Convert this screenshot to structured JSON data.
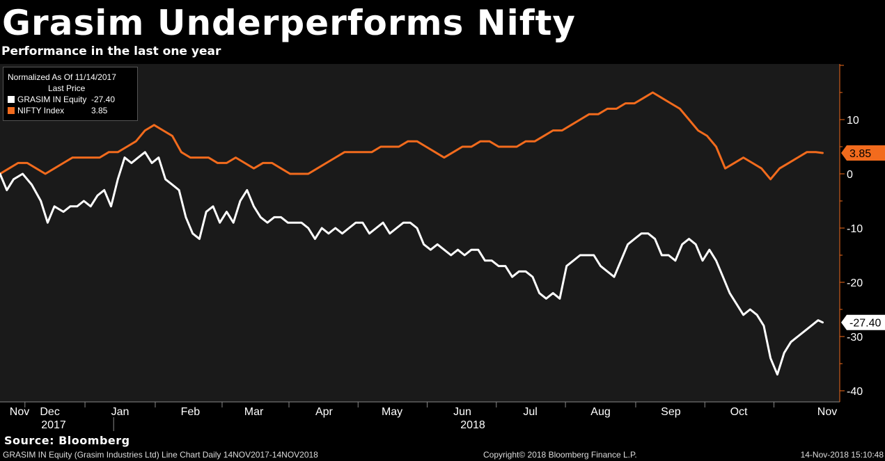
{
  "header": {
    "title": "Grasim Underperforms Nifty",
    "subtitle": "Performance in the last one year"
  },
  "legend": {
    "line1": "Normalized As Of 11/14/2017",
    "line2": "Last Price",
    "entries": [
      {
        "name": "GRASIM IN Equity",
        "value": "-27.40",
        "color": "#ffffff"
      },
      {
        "name": "NIFTY Index",
        "value": "3.85",
        "color": "#f26b1d"
      }
    ]
  },
  "footer": {
    "source": "Source: Bloomberg",
    "left": "GRASIM IN Equity (Grasim Industries Ltd) Line Chart  Daily 14NOV2017-14NOV2018",
    "center": "Copyright© 2018 Bloomberg Finance L.P.",
    "right": "14-Nov-2018 15:10:48"
  },
  "colors": {
    "background": "#000000",
    "plot_background": "#1a1a1a",
    "grasim": "#ffffff",
    "nifty": "#f26b1d",
    "axis": "#f26b1d"
  },
  "chart_data": {
    "type": "line",
    "title": "Grasim Underperforms Nifty",
    "subtitle": "Performance in the last one year",
    "xlabel": "",
    "ylabel": "",
    "ylim": [
      -42,
      20
    ],
    "yticks": [
      10,
      0,
      -10,
      -20,
      -30,
      -40
    ],
    "x_range_days": [
      0,
      365
    ],
    "month_labels": [
      {
        "label": "Nov",
        "day": 0
      },
      {
        "label": "Dec",
        "day": 22
      },
      {
        "label": "Jan",
        "day": 53
      },
      {
        "label": "Feb",
        "day": 84
      },
      {
        "label": "Mar",
        "day": 112
      },
      {
        "label": "Apr",
        "day": 143
      },
      {
        "label": "May",
        "day": 173
      },
      {
        "label": "Jun",
        "day": 204
      },
      {
        "label": "Jul",
        "day": 234
      },
      {
        "label": "Aug",
        "day": 265
      },
      {
        "label": "Sep",
        "day": 296
      },
      {
        "label": "Oct",
        "day": 326
      },
      {
        "label": "Nov",
        "day": 357
      }
    ],
    "year_labels": [
      {
        "label": "2017",
        "day": 18
      },
      {
        "label": "2018",
        "day": 194
      }
    ],
    "year_divider_day": 44,
    "grid": false,
    "legend_position": "top-left",
    "series": [
      {
        "name": "GRASIM IN Equity",
        "last": -27.4,
        "last_label": "-27.40",
        "color": "#ffffff",
        "points": [
          [
            0,
            0
          ],
          [
            3,
            -3
          ],
          [
            6,
            -1
          ],
          [
            10,
            0
          ],
          [
            14,
            -2
          ],
          [
            18,
            -5
          ],
          [
            21,
            -9
          ],
          [
            24,
            -6
          ],
          [
            28,
            -7
          ],
          [
            31,
            -6
          ],
          [
            34,
            -6
          ],
          [
            37,
            -5
          ],
          [
            40,
            -6
          ],
          [
            43,
            -4
          ],
          [
            46,
            -3
          ],
          [
            49,
            -6
          ],
          [
            52,
            -1
          ],
          [
            55,
            3
          ],
          [
            58,
            2
          ],
          [
            61,
            3
          ],
          [
            64,
            4
          ],
          [
            67,
            2
          ],
          [
            70,
            3
          ],
          [
            73,
            -1
          ],
          [
            76,
            -2
          ],
          [
            79,
            -3
          ],
          [
            82,
            -8
          ],
          [
            85,
            -11
          ],
          [
            88,
            -12
          ],
          [
            91,
            -7
          ],
          [
            94,
            -6
          ],
          [
            97,
            -9
          ],
          [
            100,
            -7
          ],
          [
            103,
            -9
          ],
          [
            106,
            -5
          ],
          [
            109,
            -3
          ],
          [
            112,
            -6
          ],
          [
            115,
            -8
          ],
          [
            118,
            -9
          ],
          [
            121,
            -8
          ],
          [
            124,
            -8
          ],
          [
            127,
            -9
          ],
          [
            130,
            -9
          ],
          [
            133,
            -9
          ],
          [
            136,
            -10
          ],
          [
            139,
            -12
          ],
          [
            142,
            -10
          ],
          [
            145,
            -11
          ],
          [
            148,
            -10
          ],
          [
            151,
            -11
          ],
          [
            154,
            -10
          ],
          [
            157,
            -9
          ],
          [
            160,
            -9
          ],
          [
            163,
            -11
          ],
          [
            166,
            -10
          ],
          [
            169,
            -9
          ],
          [
            172,
            -11
          ],
          [
            175,
            -10
          ],
          [
            178,
            -9
          ],
          [
            181,
            -9
          ],
          [
            184,
            -10
          ],
          [
            187,
            -13
          ],
          [
            190,
            -14
          ],
          [
            193,
            -13
          ],
          [
            196,
            -14
          ],
          [
            199,
            -15
          ],
          [
            202,
            -14
          ],
          [
            205,
            -15
          ],
          [
            208,
            -14
          ],
          [
            211,
            -14
          ],
          [
            214,
            -16
          ],
          [
            217,
            -16
          ],
          [
            220,
            -17
          ],
          [
            223,
            -17
          ],
          [
            226,
            -19
          ],
          [
            229,
            -18
          ],
          [
            232,
            -18
          ],
          [
            235,
            -19
          ],
          [
            238,
            -22
          ],
          [
            241,
            -23
          ],
          [
            244,
            -22
          ],
          [
            247,
            -23
          ],
          [
            250,
            -17
          ],
          [
            253,
            -16
          ],
          [
            256,
            -15
          ],
          [
            259,
            -15
          ],
          [
            262,
            -15
          ],
          [
            265,
            -17
          ],
          [
            268,
            -18
          ],
          [
            271,
            -19
          ],
          [
            274,
            -16
          ],
          [
            277,
            -13
          ],
          [
            280,
            -12
          ],
          [
            283,
            -11
          ],
          [
            286,
            -11
          ],
          [
            289,
            -12
          ],
          [
            292,
            -15
          ],
          [
            295,
            -15
          ],
          [
            298,
            -16
          ],
          [
            301,
            -13
          ],
          [
            304,
            -12
          ],
          [
            307,
            -13
          ],
          [
            310,
            -16
          ],
          [
            313,
            -14
          ],
          [
            316,
            -16
          ],
          [
            319,
            -19
          ],
          [
            322,
            -22
          ],
          [
            325,
            -24
          ],
          [
            328,
            -26
          ],
          [
            331,
            -25
          ],
          [
            334,
            -26
          ],
          [
            337,
            -28
          ],
          [
            340,
            -34
          ],
          [
            343,
            -37
          ],
          [
            346,
            -33
          ],
          [
            349,
            -31
          ],
          [
            352,
            -30
          ],
          [
            355,
            -29
          ],
          [
            358,
            -28
          ],
          [
            361,
            -27
          ],
          [
            363,
            -27.4
          ]
        ]
      },
      {
        "name": "NIFTY Index",
        "last": 3.85,
        "last_label": "3.85",
        "color": "#f26b1d",
        "points": [
          [
            0,
            0
          ],
          [
            4,
            1
          ],
          [
            8,
            2
          ],
          [
            12,
            2
          ],
          [
            16,
            1
          ],
          [
            20,
            0
          ],
          [
            24,
            1
          ],
          [
            28,
            2
          ],
          [
            32,
            3
          ],
          [
            36,
            3
          ],
          [
            40,
            3
          ],
          [
            44,
            3
          ],
          [
            48,
            4
          ],
          [
            52,
            4
          ],
          [
            56,
            5
          ],
          [
            60,
            6
          ],
          [
            64,
            8
          ],
          [
            68,
            9
          ],
          [
            72,
            8
          ],
          [
            76,
            7
          ],
          [
            80,
            4
          ],
          [
            84,
            3
          ],
          [
            88,
            3
          ],
          [
            92,
            3
          ],
          [
            96,
            2
          ],
          [
            100,
            2
          ],
          [
            104,
            3
          ],
          [
            108,
            2
          ],
          [
            112,
            1
          ],
          [
            116,
            2
          ],
          [
            120,
            2
          ],
          [
            124,
            1
          ],
          [
            128,
            0
          ],
          [
            132,
            0
          ],
          [
            136,
            0
          ],
          [
            140,
            1
          ],
          [
            144,
            2
          ],
          [
            148,
            3
          ],
          [
            152,
            4
          ],
          [
            156,
            4
          ],
          [
            160,
            4
          ],
          [
            164,
            4
          ],
          [
            168,
            5
          ],
          [
            172,
            5
          ],
          [
            176,
            5
          ],
          [
            180,
            6
          ],
          [
            184,
            6
          ],
          [
            188,
            5
          ],
          [
            192,
            4
          ],
          [
            196,
            3
          ],
          [
            200,
            4
          ],
          [
            204,
            5
          ],
          [
            208,
            5
          ],
          [
            212,
            6
          ],
          [
            216,
            6
          ],
          [
            220,
            5
          ],
          [
            224,
            5
          ],
          [
            228,
            5
          ],
          [
            232,
            6
          ],
          [
            236,
            6
          ],
          [
            240,
            7
          ],
          [
            244,
            8
          ],
          [
            248,
            8
          ],
          [
            252,
            9
          ],
          [
            256,
            10
          ],
          [
            260,
            11
          ],
          [
            264,
            11
          ],
          [
            268,
            12
          ],
          [
            272,
            12
          ],
          [
            276,
            13
          ],
          [
            280,
            13
          ],
          [
            284,
            14
          ],
          [
            288,
            15
          ],
          [
            292,
            14
          ],
          [
            296,
            13
          ],
          [
            300,
            12
          ],
          [
            304,
            10
          ],
          [
            308,
            8
          ],
          [
            312,
            7
          ],
          [
            316,
            5
          ],
          [
            320,
            1
          ],
          [
            324,
            2
          ],
          [
            328,
            3
          ],
          [
            332,
            2
          ],
          [
            336,
            1
          ],
          [
            340,
            -1
          ],
          [
            344,
            1
          ],
          [
            348,
            2
          ],
          [
            352,
            3
          ],
          [
            356,
            4
          ],
          [
            360,
            4
          ],
          [
            363,
            3.85
          ]
        ]
      }
    ]
  }
}
